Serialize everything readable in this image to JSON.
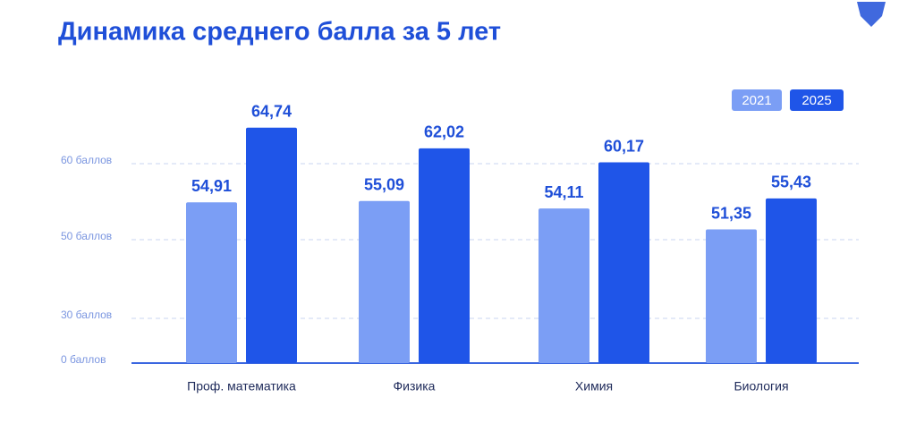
{
  "chart_data": {
    "type": "bar",
    "title": "Динамика среднего балла за 5 лет",
    "categories": [
      "Проф. математика",
      "Физика",
      "Химия",
      "Биология"
    ],
    "series": [
      {
        "name": "2021",
        "color": "#7b9ef5",
        "values": [
          54.91,
          55.09,
          54.11,
          51.35
        ],
        "value_labels": [
          "54,91",
          "55,09",
          "54,11",
          "51,35"
        ]
      },
      {
        "name": "2025",
        "color": "#1f55e8",
        "values": [
          64.74,
          62.02,
          60.17,
          55.43
        ],
        "value_labels": [
          "64,74",
          "62,02",
          "60,17",
          "55,43"
        ]
      }
    ],
    "ylim": [
      0,
      70
    ],
    "yticks": [
      {
        "value": 0,
        "label": "0 баллов"
      },
      {
        "value": 30,
        "label": "30 баллов"
      },
      {
        "value": 50,
        "label": "50 баллов"
      },
      {
        "value": 60,
        "label": "60 баллов"
      }
    ],
    "grid": true,
    "legend": "top-right"
  }
}
